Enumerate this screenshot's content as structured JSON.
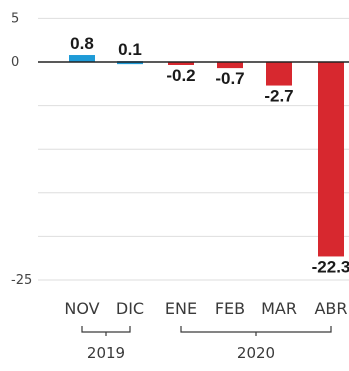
{
  "chart_data": {
    "type": "bar",
    "categories": [
      "NOV",
      "DIC",
      "ENE",
      "FEB",
      "MAR",
      "ABR"
    ],
    "values": [
      0.8,
      0.1,
      -0.2,
      -0.7,
      -2.7,
      -22.3
    ],
    "value_labels": [
      "0.8",
      "0.1",
      "-0.2",
      "-0.7",
      "-2.7",
      "-22.3"
    ],
    "yticks": [
      5,
      0,
      -25
    ],
    "ytick_labels": [
      "5",
      "0",
      "-25"
    ],
    "ylim": [
      -25,
      5
    ],
    "grid": true,
    "colors": {
      "positive": "#1f9bd7",
      "negative": "#d7282f",
      "zero_line": "#222222",
      "grid": "#dedede"
    },
    "groups": [
      {
        "label": "2019",
        "categories": [
          "NOV",
          "DIC"
        ]
      },
      {
        "label": "2020",
        "categories": [
          "ENE",
          "FEB",
          "MAR",
          "ABR"
        ]
      }
    ]
  }
}
